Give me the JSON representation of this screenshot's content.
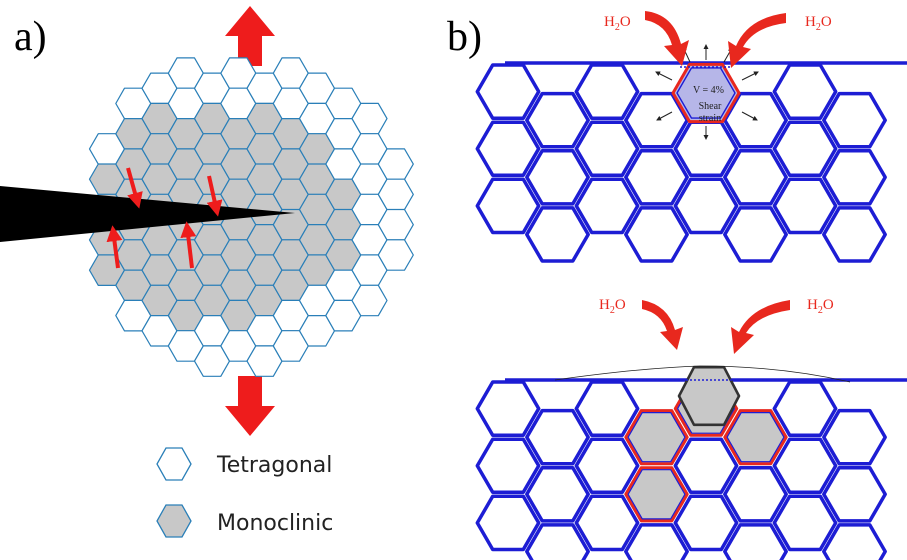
{
  "panels": {
    "a": {
      "label": "a)"
    },
    "b": {
      "label": "b)"
    }
  },
  "legend": {
    "tetragonal": "Tetragonal",
    "monoclinic": "Monoclinic"
  },
  "water": {
    "left_top": {
      "main": "H",
      "sub": "2",
      "tail": "O"
    },
    "right_top": {
      "main": "H",
      "sub": "2",
      "tail": "O"
    },
    "left_bottom": {
      "main": "H",
      "sub": "2",
      "tail": "O"
    },
    "right_bottom": {
      "main": "H",
      "sub": "2",
      "tail": "O"
    }
  },
  "annotation": {
    "volume": "V = 4%",
    "shear_1": "Shear",
    "shear_2": "strain"
  },
  "colors": {
    "tetragonal_stroke": "#2a7fb8",
    "monoclinic_fill": "#c8c8c8",
    "monoclinic_stroke": "#2a7fb8",
    "grain_blue": "#1d1dd4",
    "grain_red": "#e8281e",
    "arrow_red": "#ee1c1c",
    "crack": "#000000"
  },
  "icons": {
    "stress_arrow": "thick-red-arrow",
    "crack": "black-wedge-crack",
    "water_arrow": "curved-red-arrow"
  }
}
